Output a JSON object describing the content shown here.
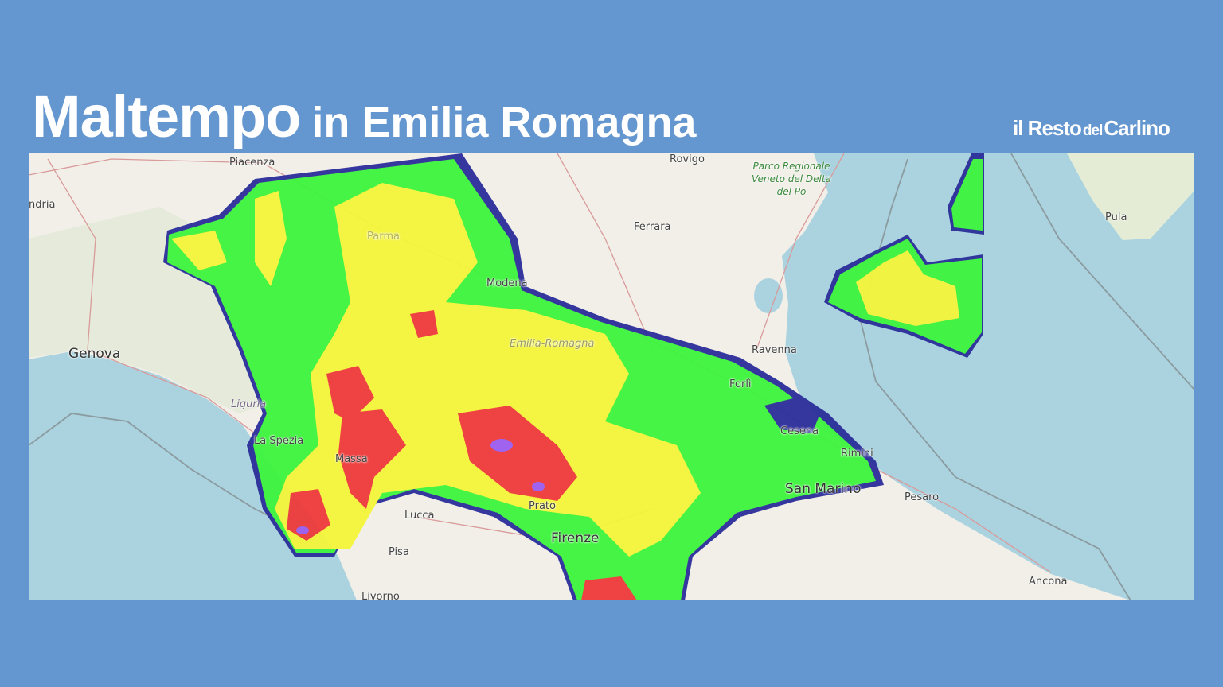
{
  "header": {
    "title_main": "Maltempo",
    "title_rest": "in Emilia Romagna",
    "brand_logo": "il Resto del Carlino",
    "brand_parts": [
      "il Resto",
      "del",
      "Carlino"
    ]
  },
  "colors": {
    "background": "#6496cf",
    "sea": "#aad3df",
    "land": "#f2efe9",
    "radar_light": "#2b2e9a",
    "radar_moderate": "#3df53d",
    "radar_heavy": "#f5f53a",
    "radar_very_heavy": "#ee3a3a",
    "radar_extreme": "#9b5cf0"
  },
  "map": {
    "labels": {
      "piacenza": "Piacenza",
      "alessandria": "ndria",
      "parma": "Parma",
      "modena": "Modena",
      "genova": "Genova",
      "liguria": "Liguria",
      "la_spezia": "La Spezia",
      "massa": "Massa",
      "lucca": "Lucca",
      "pisa": "Pisa",
      "livorno": "Livorno",
      "prato": "Prato",
      "firenze": "Firenze",
      "emilia_romagna": "Emilia-Romagna",
      "rovigo": "Rovigo",
      "ferrara": "Ferrara",
      "park": "Parco Regionale Veneto del Delta del Po",
      "ravenna": "Ravenna",
      "forli": "Forlì",
      "cesena": "Cesena",
      "rimini": "Rimini",
      "san_marino": "San Marino",
      "pesaro": "Pesaro",
      "ancona": "Ancona",
      "pula": "Pula"
    }
  }
}
